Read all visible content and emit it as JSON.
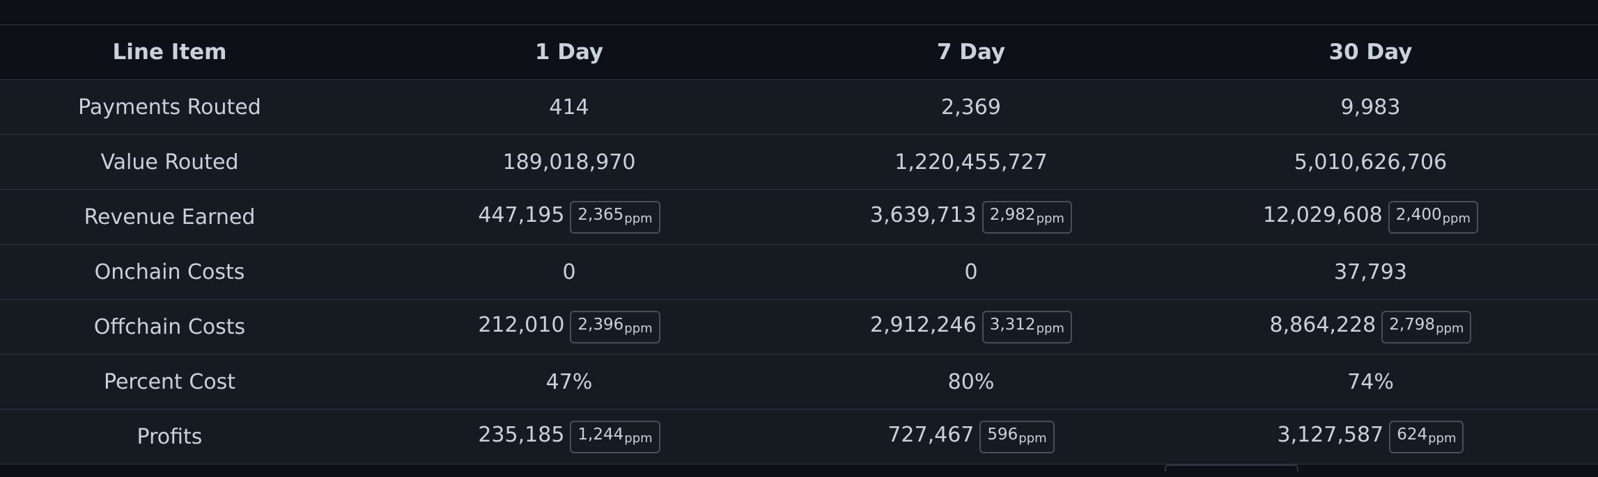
{
  "table": {
    "headers": [
      "Line Item",
      "1 Day",
      "7 Day",
      "30 Day"
    ],
    "rows": [
      {
        "label": "Payments Routed",
        "cells": [
          {
            "value": "414",
            "badge": null
          },
          {
            "value": "2,369",
            "badge": null
          },
          {
            "value": "9,983",
            "badge": null
          }
        ]
      },
      {
        "label": "Value Routed",
        "cells": [
          {
            "value": "189,018,970",
            "badge": null
          },
          {
            "value": "1,220,455,727",
            "badge": null
          },
          {
            "value": "5,010,626,706",
            "badge": null
          }
        ]
      },
      {
        "label": "Revenue Earned",
        "cells": [
          {
            "value": "447,195",
            "badge": "2,365"
          },
          {
            "value": "3,639,713",
            "badge": "2,982"
          },
          {
            "value": "12,029,608",
            "badge": "2,400"
          }
        ]
      },
      {
        "label": "Onchain Costs",
        "cells": [
          {
            "value": "0",
            "badge": null
          },
          {
            "value": "0",
            "badge": null
          },
          {
            "value": "37,793",
            "badge": null
          }
        ]
      },
      {
        "label": "Offchain Costs",
        "cells": [
          {
            "value": "212,010",
            "badge": "2,396"
          },
          {
            "value": "2,912,246",
            "badge": "3,312"
          },
          {
            "value": "8,864,228",
            "badge": "2,798"
          }
        ]
      },
      {
        "label": "Percent Cost",
        "cells": [
          {
            "value": "47%",
            "badge": null
          },
          {
            "value": "80%",
            "badge": null
          },
          {
            "value": "74%",
            "badge": null
          }
        ]
      },
      {
        "label": "Profits",
        "cells": [
          {
            "value": "235,185",
            "badge": "1,244"
          },
          {
            "value": "727,467",
            "badge": "596"
          },
          {
            "value": "3,127,587",
            "badge": "624"
          }
        ]
      }
    ],
    "badge_unit": "ppm"
  },
  "colors": {
    "page_background": "#0d1117",
    "row_background": "#161b22",
    "border": "#30363d",
    "text": "#c9d1d9"
  }
}
